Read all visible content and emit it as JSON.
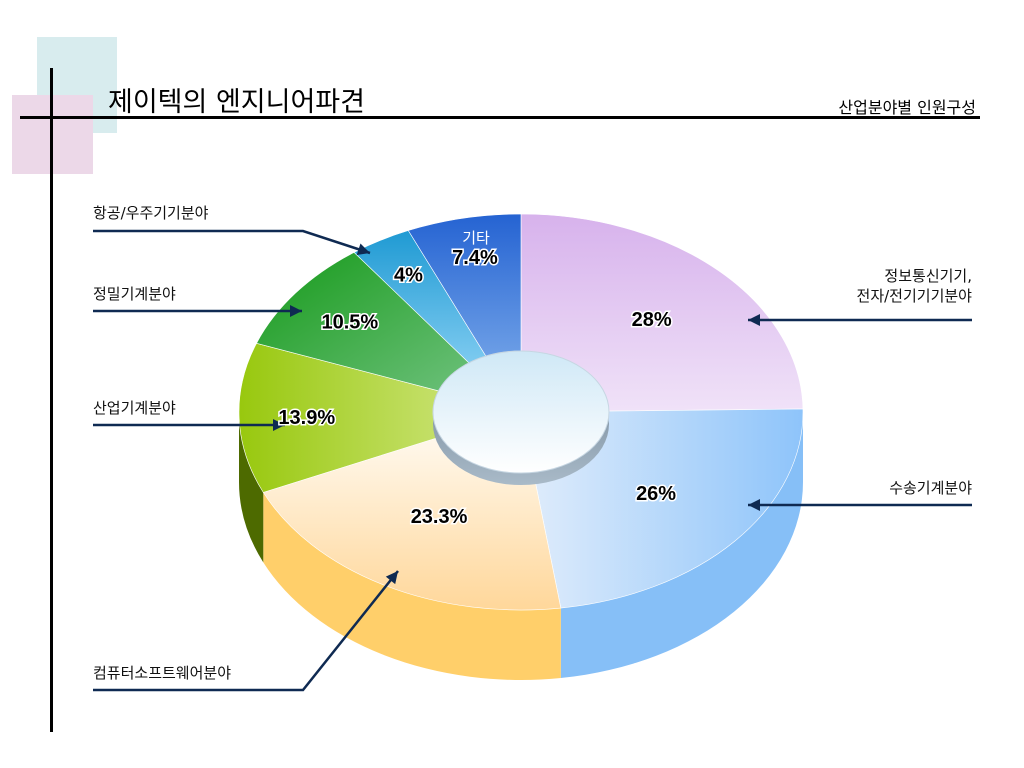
{
  "slide": {
    "title": "제이텍의 엔지니어파견",
    "subtitle": "산업분야별 인원구성"
  },
  "chart_data": {
    "type": "pie",
    "title": "제이텍의 엔지니어파견",
    "subtitle": "산업분야별 인원구성",
    "categories": [
      "정보통신기기,\n전자/전기기기분야",
      "수송기계분야",
      "컴퓨터소프트웨어분야",
      "산업기계분야",
      "정밀기계분야",
      "항공/우주기기분야",
      "기타"
    ],
    "values": [
      28,
      26,
      23.3,
      13.9,
      10.5,
      4,
      7.4
    ],
    "value_labels": [
      "28%",
      "26%",
      "23.3%",
      "13.9%",
      "10.5%",
      "4%",
      "7.4%"
    ],
    "colors": [
      "#d9b5ec",
      "#8ec4fa",
      "#ffce6a",
      "#a3cf1c",
      "#2a9e3a",
      "#2a9fd6",
      "#2d66d2"
    ],
    "style": "3d-donut"
  }
}
